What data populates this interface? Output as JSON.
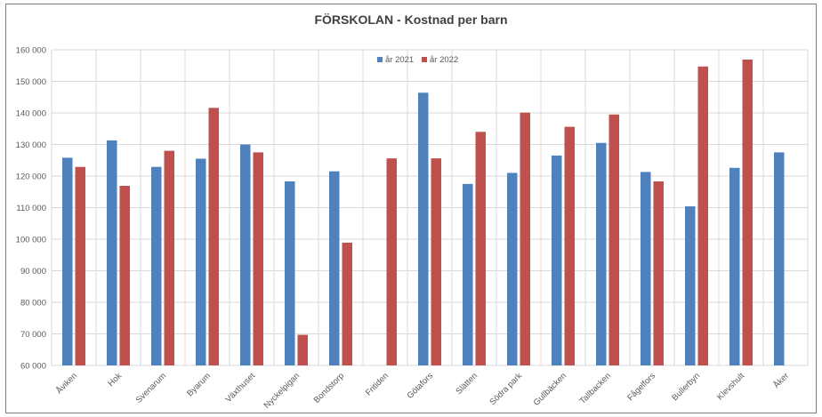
{
  "chart_data": {
    "type": "bar",
    "title": "FÖRSKOLAN - Kostnad per barn",
    "categories": [
      "Åviken",
      "Hok",
      "Svenarum",
      "Byarum",
      "Växthuset",
      "Nyckelpigan",
      "Bondstorp",
      "Fritiden",
      "Götafors",
      "Slätten",
      "Södra park",
      "Gullbäcken",
      "Tallbacken",
      "Fågelfors",
      "Bullerbyn",
      "Klevshult",
      "Åker"
    ],
    "series": [
      {
        "name": "år 2021",
        "color": "#4f81bd",
        "values": [
          125800,
          131300,
          122900,
          125500,
          130000,
          118300,
          121500,
          null,
          146400,
          117500,
          121000,
          126500,
          130500,
          121300,
          110400,
          122600,
          127500
        ]
      },
      {
        "name": "år 2022",
        "color": "#c0504d",
        "values": [
          122900,
          116900,
          128000,
          141600,
          127500,
          69700,
          98900,
          125600,
          125600,
          134000,
          140100,
          135600,
          139500,
          118300,
          154700,
          156900,
          null
        ]
      }
    ],
    "y_ticks": [
      "60 000",
      "70 000",
      "80 000",
      "90 000",
      "100 000",
      "110 000",
      "120 000",
      "130 000",
      "140 000",
      "150 000",
      "160 000"
    ],
    "ylim": [
      60000,
      160000
    ],
    "legend_position": "top-center",
    "grid": true,
    "colors": {
      "grid": "#d9d9d9",
      "axis_text": "#595959",
      "title": "#404040"
    }
  }
}
